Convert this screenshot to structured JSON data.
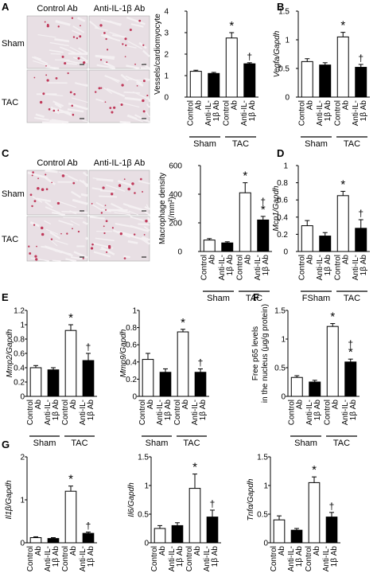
{
  "panel_letters": {
    "A": "A",
    "B": "B",
    "C": "C",
    "D": "D",
    "E": "E",
    "F": "F",
    "G": "G"
  },
  "histology": {
    "header_left": "Control Ab",
    "header_right": "Anti-IL-1β Ab",
    "row_top": "Sham",
    "row_bottom": "TAC"
  },
  "colors": {
    "control": "#ffffff",
    "anti": "#000000",
    "histology_bg": "#e8dfe4",
    "histology_red": "#c0395a"
  },
  "chart_data": [
    {
      "id": "A",
      "type": "bar",
      "ylabel": "Vessels/cardiomyocyte",
      "ylim": [
        0,
        4
      ],
      "yticks": [
        "0",
        "1",
        "2",
        "3",
        "4"
      ],
      "categories": [
        "Control Ab",
        "Anti-IL-1β Ab",
        "Control Ab",
        "Anti-IL-1β Ab"
      ],
      "values": [
        1.2,
        1.1,
        2.75,
        1.55
      ],
      "errors": [
        0.05,
        0.05,
        0.25,
        0.05
      ],
      "annotations": [
        "",
        "",
        "*",
        "†"
      ],
      "groups": [
        "Sham",
        "TAC"
      ]
    },
    {
      "id": "B",
      "type": "bar",
      "ylabel": "Vegfa/Gapdh",
      "ylim": [
        0,
        1.5
      ],
      "yticks": [
        "0",
        "0.5",
        "1",
        "1.5"
      ],
      "categories": [
        "Control Ab",
        "Anti-IL-1β Ab",
        "Control Ab",
        "Anti-IL-1β Ab"
      ],
      "values": [
        0.62,
        0.56,
        1.05,
        0.52
      ],
      "errors": [
        0.05,
        0.04,
        0.08,
        0.05
      ],
      "annotations": [
        "",
        "",
        "*",
        "†"
      ],
      "groups": [
        "Sham",
        "TAC"
      ]
    },
    {
      "id": "C",
      "type": "bar",
      "ylabel": "Macrophage density (/mm²)",
      "ylim": [
        0,
        600
      ],
      "yticks": [
        "0",
        "200",
        "400",
        "600"
      ],
      "categories": [
        "Control Ab",
        "Anti-IL-1β Ab",
        "Control Ab",
        "Anti-IL-1β Ab"
      ],
      "values": [
        80,
        60,
        410,
        220
      ],
      "errors": [
        10,
        8,
        70,
        25
      ],
      "annotations": [
        "",
        "",
        "*",
        "†\n*"
      ],
      "groups": [
        "Sham",
        "TAC"
      ]
    },
    {
      "id": "D",
      "type": "bar",
      "ylabel": "Mcp1/Gapdh",
      "ylim": [
        0,
        1
      ],
      "yticks": [
        "0",
        "0.2",
        "0.4",
        "0.6",
        "0.8",
        "1"
      ],
      "categories": [
        "Control Ab",
        "Anti-IL-1β Ab",
        "Control Ab",
        "Anti-IL-1β Ab"
      ],
      "values": [
        0.3,
        0.18,
        0.65,
        0.27
      ],
      "errors": [
        0.06,
        0.04,
        0.05,
        0.1
      ],
      "annotations": [
        "",
        "",
        "*",
        "†"
      ],
      "groups": [
        "FSham",
        "TAC"
      ]
    },
    {
      "id": "E1",
      "type": "bar",
      "ylabel": "Mmp2/Gapdh",
      "ylim": [
        0,
        1.2
      ],
      "yticks": [
        "0",
        "0.2",
        "0.4",
        "0.6",
        "0.8",
        "1",
        "1.2"
      ],
      "categories": [
        "Control Ab",
        "Anti-IL-1β Ab",
        "Control Ab",
        "Anti-IL-1β Ab"
      ],
      "values": [
        0.4,
        0.37,
        0.92,
        0.5
      ],
      "errors": [
        0.03,
        0.03,
        0.08,
        0.1
      ],
      "annotations": [
        "",
        "",
        "*",
        "†"
      ],
      "groups": [
        "Sham",
        "TAC"
      ]
    },
    {
      "id": "E2",
      "type": "bar",
      "ylabel": "Mmp9/Gapdh",
      "ylim": [
        0,
        1
      ],
      "yticks": [
        "0",
        "0.2",
        "0.4",
        "0.6",
        "0.8",
        "1"
      ],
      "categories": [
        "Control Ab",
        "Anti-IL-1β Ab",
        "Control Ab",
        "Anti-IL-1β Ab"
      ],
      "values": [
        0.43,
        0.28,
        0.75,
        0.28
      ],
      "errors": [
        0.07,
        0.04,
        0.03,
        0.04
      ],
      "annotations": [
        "",
        "",
        "*",
        "†"
      ],
      "groups": [
        "Sham",
        "TAC"
      ]
    },
    {
      "id": "F",
      "type": "bar",
      "ylabel": "Free p65 levels in the nucleus (μg/g protein)",
      "ylim": [
        0,
        1.5
      ],
      "yticks": [
        "0",
        "0.5",
        "1",
        "1.5"
      ],
      "categories": [
        "Control Ab",
        "Anti-IL-1β Ab",
        "Control Ab",
        "Anti-IL-1β Ab"
      ],
      "values": [
        0.33,
        0.25,
        1.22,
        0.6
      ],
      "errors": [
        0.03,
        0.03,
        0.05,
        0.05
      ],
      "annotations": [
        "",
        "",
        "*",
        "†\n*"
      ],
      "groups": [
        "Sham",
        "TAC"
      ]
    },
    {
      "id": "G1",
      "type": "bar",
      "ylabel": "Il1β/Gapdh",
      "ylim": [
        0,
        2
      ],
      "yticks": [
        "0",
        "1",
        "2"
      ],
      "categories": [
        "Control Ab",
        "Anti-IL-1β Ab",
        "Control Ab",
        "Anti-IL-1β Ab"
      ],
      "values": [
        0.12,
        0.1,
        1.2,
        0.22
      ],
      "errors": [
        0.02,
        0.02,
        0.12,
        0.03
      ],
      "annotations": [
        "",
        "",
        "*",
        "†"
      ],
      "groups": [
        "Sham",
        "TAC"
      ]
    },
    {
      "id": "G2",
      "type": "bar",
      "ylabel": "Il6/Gapdh",
      "ylim": [
        0,
        1.5
      ],
      "yticks": [
        "0",
        "0.5",
        "1",
        "1.5"
      ],
      "categories": [
        "Control Ab",
        "Anti-IL-1β Ab",
        "Control Ab",
        "Anti-IL-1β Ab"
      ],
      "values": [
        0.25,
        0.3,
        0.95,
        0.45
      ],
      "errors": [
        0.05,
        0.05,
        0.25,
        0.12
      ],
      "annotations": [
        "",
        "",
        "*",
        "†"
      ],
      "groups": [
        "Sham",
        "TAC"
      ]
    },
    {
      "id": "G3",
      "type": "bar",
      "ylabel": "Tnfα/Gapdh",
      "ylim": [
        0,
        1.5
      ],
      "yticks": [
        "0",
        "0.5",
        "1",
        "1.5"
      ],
      "categories": [
        "Control Ab",
        "Anti-IL-1β Ab",
        "Control Ab",
        "Anti-IL-1β Ab"
      ],
      "values": [
        0.4,
        0.22,
        1.05,
        0.45
      ],
      "errors": [
        0.07,
        0.03,
        0.1,
        0.08
      ],
      "annotations": [
        "",
        "",
        "*",
        "†"
      ],
      "groups": [
        "Sham",
        "TAC"
      ]
    }
  ]
}
